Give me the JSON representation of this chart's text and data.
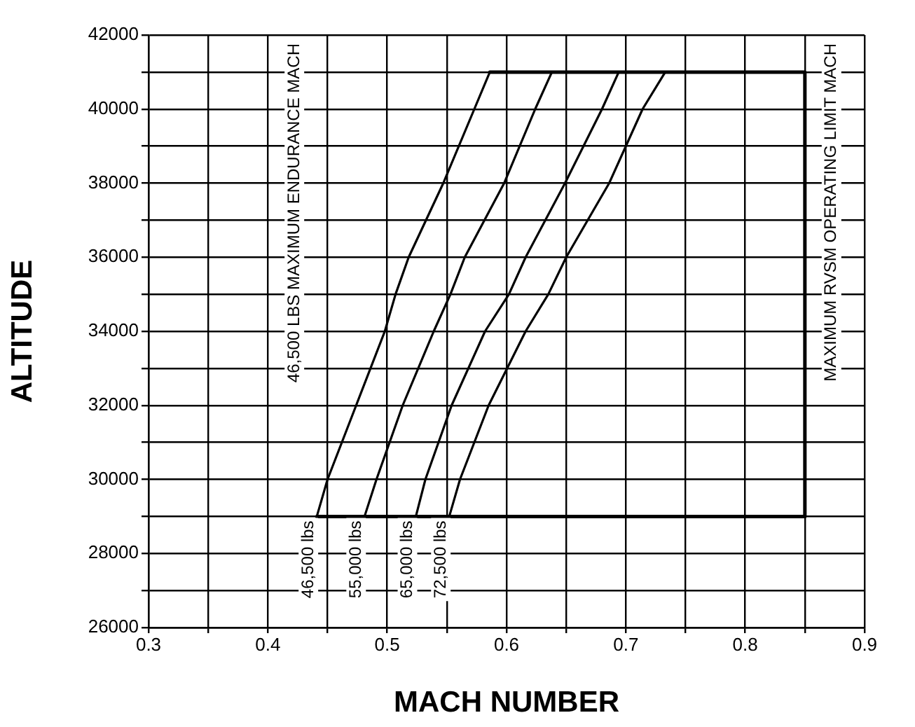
{
  "chart_data": {
    "type": "line",
    "xlabel": "MACH NUMBER",
    "ylabel": "ALTITUDE",
    "xlim": [
      0.3,
      0.9
    ],
    "ylim": [
      26000,
      42000
    ],
    "xticks": [
      0.3,
      {
        "value": 0.35,
        "label": null
      },
      0.4,
      {
        "value": 0.45,
        "label": null
      },
      0.5,
      {
        "value": 0.55,
        "label": null
      },
      0.6,
      {
        "value": 0.65,
        "label": null
      },
      0.7,
      {
        "value": 0.75,
        "label": null
      },
      0.8,
      {
        "value": 0.85,
        "label": null
      },
      0.9
    ],
    "yticks": [
      26000,
      {
        "value": 27000,
        "label": null
      },
      28000,
      {
        "value": 29000,
        "label": null
      },
      30000,
      {
        "value": 31000,
        "label": null
      },
      32000,
      {
        "value": 33000,
        "label": null
      },
      34000,
      {
        "value": 35000,
        "label": null
      },
      36000,
      {
        "value": 37000,
        "label": null
      },
      38000,
      {
        "value": 39000,
        "label": null
      },
      40000,
      {
        "value": 41000,
        "label": null
      },
      42000
    ],
    "grid": true,
    "legend": false,
    "marker": "none",
    "line_style": "solid",
    "series": [
      {
        "name": "46,500 lbs",
        "color": "#000000",
        "x": [
          0.441,
          0.45,
          0.474,
          0.498,
          0.507,
          0.518,
          0.547,
          0.573,
          0.586
        ],
        "values": [
          29000,
          30000,
          32000,
          34000,
          35000,
          36000,
          38000,
          40000,
          41000
        ]
      },
      {
        "name": "55,000 lbs",
        "color": "#000000",
        "x": [
          0.481,
          0.491,
          0.513,
          0.539,
          0.553,
          0.565,
          0.598,
          0.624,
          0.638
        ],
        "values": [
          29000,
          30000,
          32000,
          34000,
          35000,
          36000,
          38000,
          40000,
          41000
        ]
      },
      {
        "name": "65,000 lbs",
        "color": "#000000",
        "x": [
          0.524,
          0.532,
          0.554,
          0.582,
          0.602,
          0.616,
          0.649,
          0.68,
          0.694
        ],
        "values": [
          29000,
          30000,
          32000,
          34000,
          35000,
          36000,
          38000,
          40000,
          41000
        ]
      },
      {
        "name": "72,500 lbs",
        "color": "#000000",
        "x": [
          0.552,
          0.561,
          0.585,
          0.616,
          0.635,
          0.65,
          0.686,
          0.714,
          0.733
        ],
        "values": [
          29000,
          30000,
          32000,
          34000,
          35000,
          36000,
          38000,
          40000,
          41000
        ]
      },
      {
        "color": "#000000",
        "x": [
          0.441,
          0.85,
          0.85,
          0.586
        ],
        "values": [
          29000,
          29000,
          41000,
          41000
        ]
      }
    ],
    "annotations": [
      "46,500 LBS MAXIMUM ENDURANCE MACH",
      "MAXIMUM RVSM OPERATING LIMIT MACH"
    ]
  }
}
